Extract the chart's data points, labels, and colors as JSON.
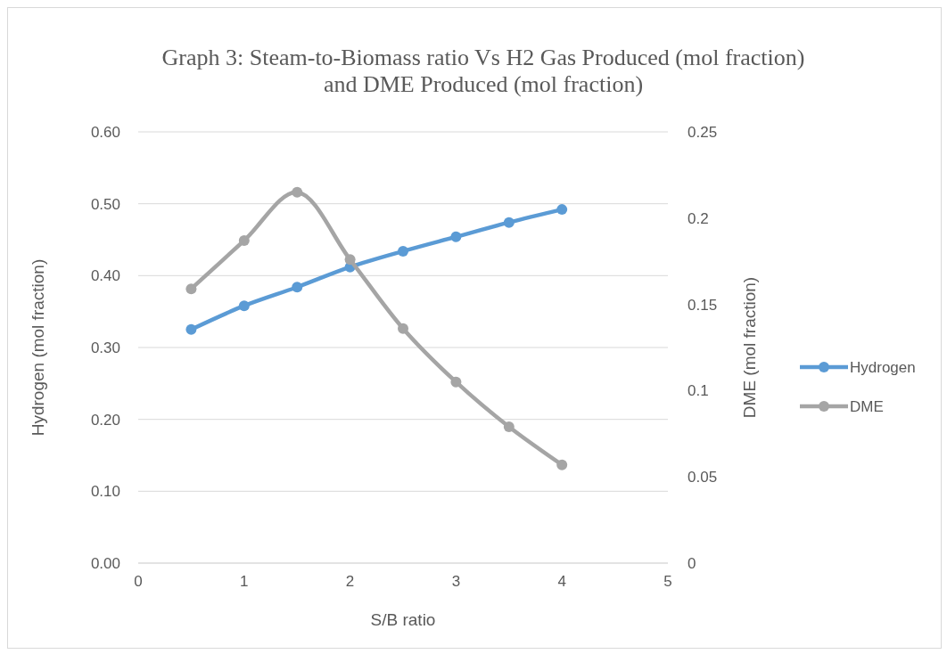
{
  "chart_data": {
    "type": "line",
    "title": "Graph 3: Steam-to-Biomass ratio Vs H2 Gas Produced (mol fraction) and DME Produced (mol fraction)",
    "xlabel": "S/B ratio",
    "ylabel": "Hydrogen (mol fraction)",
    "y2label": "DME (mol fraction)",
    "x": [
      0.5,
      1,
      1.5,
      2,
      2.5,
      3,
      3.5,
      4
    ],
    "series": [
      {
        "name": "Hydrogen",
        "color": "#5b9bd5",
        "values": [
          0.325,
          0.358,
          0.384,
          0.412,
          0.434,
          0.454,
          0.474,
          0.492
        ]
      },
      {
        "name": "DME",
        "color": "#a5a5a5",
        "axis": "y2",
        "values": [
          0.159,
          0.187,
          0.215,
          0.176,
          0.136,
          0.105,
          0.079,
          0.057
        ]
      }
    ],
    "xlim": [
      0,
      5
    ],
    "xticks": [
      0,
      1,
      2,
      3,
      4,
      5
    ],
    "ylim": [
      0,
      0.6
    ],
    "yticks": [
      {
        "value": 0,
        "label": "0.00"
      },
      {
        "value": 0.1,
        "label": "0.10"
      },
      {
        "value": 0.2,
        "label": "0.20"
      },
      {
        "value": 0.3,
        "label": "0.30"
      },
      {
        "value": 0.4,
        "label": "0.40"
      },
      {
        "value": 0.5,
        "label": "0.50"
      },
      {
        "value": 0.6,
        "label": "0.60"
      }
    ],
    "y2lim": [
      0,
      0.25
    ],
    "y2ticks": [
      0,
      0.05,
      0.1,
      0.15,
      0.2,
      0.25
    ],
    "grid": "y",
    "legend": "right",
    "marker": "circle",
    "line_style": "solid"
  }
}
